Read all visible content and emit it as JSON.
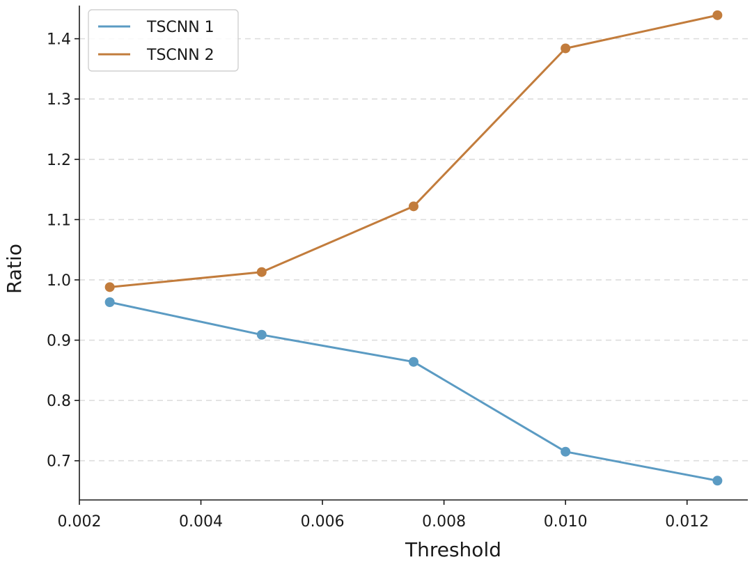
{
  "chart_data": {
    "type": "line",
    "title": "",
    "xlabel": "Threshold",
    "ylabel": "Ratio",
    "x": [
      0.0025,
      0.005,
      0.0075,
      0.01,
      0.0125
    ],
    "xlim": [
      0.002,
      0.013
    ],
    "ylim": [
      0.635,
      1.455
    ],
    "xticks": [
      0.002,
      0.004,
      0.006,
      0.008,
      0.01,
      0.012
    ],
    "xtick_labels": [
      "0.002",
      "0.004",
      "0.006",
      "0.008",
      "0.010",
      "0.012"
    ],
    "yticks": [
      0.7,
      0.8,
      0.9,
      1.0,
      1.1,
      1.2,
      1.3,
      1.4
    ],
    "ytick_labels": [
      "0.7",
      "0.8",
      "0.9",
      "1.0",
      "1.1",
      "1.2",
      "1.3",
      "1.4"
    ],
    "grid": "horizontal dashed",
    "legend_position": "top-left",
    "series": [
      {
        "name": "TSCNN 1",
        "color": "#5b9bc3",
        "values": [
          0.963,
          0.909,
          0.864,
          0.715,
          0.667
        ]
      },
      {
        "name": "TSCNN 2",
        "color": "#c27c3c",
        "values": [
          0.988,
          1.013,
          1.122,
          1.384,
          1.439
        ]
      }
    ]
  }
}
